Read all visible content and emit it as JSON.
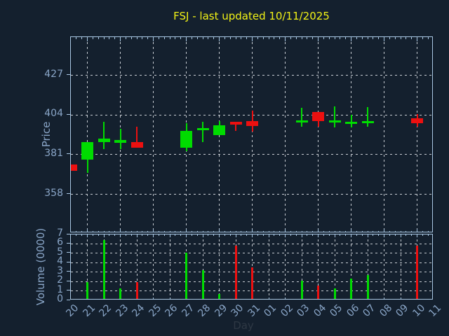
{
  "colors": {
    "background": "#14202e",
    "spine": "#a9c7e3",
    "tick_label": "#8aa6c8",
    "grid": "#c8cdd3",
    "bullish": "#00dc00",
    "bearish": "#ec1010",
    "title": "#f2f216",
    "xlabel_text": "#2e3844"
  },
  "chart_data": {
    "type": "candlestick",
    "title": "FSJ - last updated 10/11/2025",
    "xlabel": "Day",
    "price_axis": {
      "label": "Price",
      "ticks": [
        358,
        381,
        404,
        427
      ],
      "ylim_approx": [
        336,
        449
      ]
    },
    "volume_axis": {
      "label": "Volume (0000)",
      "ticks": [
        0,
        1,
        2,
        3,
        4,
        5,
        6,
        7
      ],
      "ylim": [
        0,
        7
      ]
    },
    "days": [
      "20",
      "21",
      "22",
      "23",
      "24",
      "25",
      "26",
      "27",
      "28",
      "29",
      "30",
      "31",
      "01",
      "02",
      "03",
      "04",
      "05",
      "06",
      "07",
      "08",
      "09",
      "10",
      "11"
    ],
    "grid": {
      "style": "dashed",
      "price_vertical_every": "2nd day (odd positions)",
      "volume_vertical_every": "day",
      "price_horizontal_at_ticks": true,
      "volume_horizontal_at": [
        1,
        2,
        3,
        4,
        5,
        6
      ]
    },
    "candles": [
      {
        "day": "20",
        "open": 375.2,
        "high": 375.2,
        "low": 371.5,
        "close": 371.5,
        "volume": 0,
        "color": "red"
      },
      {
        "day": "21",
        "open": 378.3,
        "high": 388.4,
        "low": 370.3,
        "close": 388.4,
        "volume": 1.9,
        "color": "green"
      },
      {
        "day": "22",
        "open": 388.4,
        "high": 400.0,
        "low": 384.4,
        "close": 390.5,
        "volume": 6.4,
        "color": "green"
      },
      {
        "day": "23",
        "open": 387.8,
        "high": 395.9,
        "low": 384.4,
        "close": 389.4,
        "volume": 1.3,
        "color": "green"
      },
      {
        "day": "24",
        "open": 388.4,
        "high": 397.2,
        "low": 385.1,
        "close": 385.1,
        "volume": 1.9,
        "color": "red"
      },
      {
        "day": "27",
        "open": 385.1,
        "high": 399.3,
        "low": 383.0,
        "close": 394.8,
        "volume": 5.1,
        "color": "green"
      },
      {
        "day": "28",
        "open": 395.8,
        "high": 399.9,
        "low": 388.4,
        "close": 396.4,
        "volume": 3.2,
        "color": "green"
      },
      {
        "day": "29",
        "open": 392.5,
        "high": 400.6,
        "low": 392.5,
        "close": 398.2,
        "volume": 0.7,
        "color": "green"
      },
      {
        "day": "30",
        "open": 400.2,
        "high": 400.2,
        "low": 394.8,
        "close": 398.6,
        "volume": 5.8,
        "color": "red"
      },
      {
        "day": "31",
        "open": 400.6,
        "high": 406.4,
        "low": 394.5,
        "close": 397.5,
        "volume": 3.5,
        "color": "red"
      },
      {
        "day": "03",
        "open": 399.6,
        "high": 408.1,
        "low": 397.2,
        "close": 400.8,
        "volume": 2.1,
        "color": "green"
      },
      {
        "day": "04",
        "open": 405.8,
        "high": 405.8,
        "low": 397.2,
        "close": 400.3,
        "volume": 1.6,
        "color": "red"
      },
      {
        "day": "05",
        "open": 399.7,
        "high": 409.0,
        "low": 396.9,
        "close": 400.7,
        "volume": 1.3,
        "color": "green"
      },
      {
        "day": "06",
        "open": 399.2,
        "high": 404.0,
        "low": 396.9,
        "close": 400.0,
        "volume": 2.3,
        "color": "green"
      },
      {
        "day": "07",
        "open": 399.5,
        "high": 408.4,
        "low": 397.2,
        "close": 400.5,
        "volume": 2.7,
        "color": "green"
      },
      {
        "day": "10",
        "open": 402.0,
        "high": 404.7,
        "low": 397.2,
        "close": 399.4,
        "volume": 5.8,
        "color": "red"
      }
    ]
  }
}
